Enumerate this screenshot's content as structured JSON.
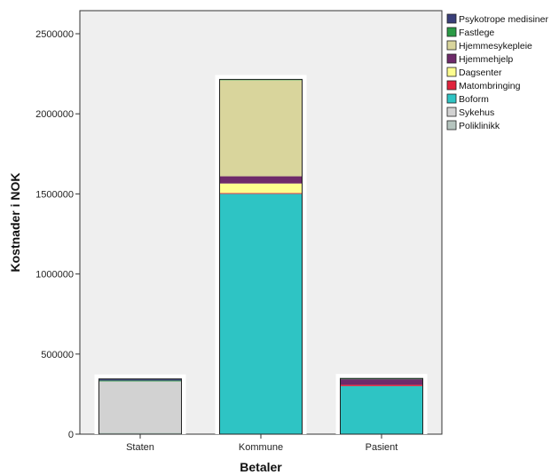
{
  "chart_data": {
    "type": "bar",
    "stacked": true,
    "xlabel": "Betaler",
    "ylabel": "Kostnader i NOK",
    "ylim": [
      0,
      2500000
    ],
    "yticks": [
      0,
      500000,
      1000000,
      1500000,
      2000000,
      2500000
    ],
    "yticklabels": [
      "0",
      "500000",
      "1000000",
      "1500000",
      "2000000",
      "2500000"
    ],
    "categories": [
      "Staten",
      "Kommune",
      "Pasient"
    ],
    "legend_position": "top-right",
    "legend_order": [
      "Psykotrope medisiner",
      "Fastlege",
      "Hjemmesykepleie",
      "Hjemmehjelp",
      "Dagsenter",
      "Matombringing",
      "Boform",
      "Sykehus",
      "Poliklinikk"
    ],
    "series": [
      {
        "name": "Poliklinikk",
        "color": "#b5c4be",
        "values": [
          10000,
          0,
          0
        ]
      },
      {
        "name": "Sykehus",
        "color": "#d2d2d2",
        "values": [
          320000,
          0,
          0
        ]
      },
      {
        "name": "Boform",
        "color": "#2ec4c4",
        "values": [
          0,
          1500000,
          300000
        ]
      },
      {
        "name": "Matombringing",
        "color": "#e0233c",
        "values": [
          0,
          5000,
          8000
        ]
      },
      {
        "name": "Dagsenter",
        "color": "#fdfd8e",
        "values": [
          0,
          60000,
          0
        ]
      },
      {
        "name": "Hjemmehjelp",
        "color": "#6e2a6a",
        "values": [
          0,
          45000,
          35000
        ]
      },
      {
        "name": "Hjemmesykepleie",
        "color": "#d9d59c",
        "values": [
          0,
          600000,
          0
        ]
      },
      {
        "name": "Fastlege",
        "color": "#2a9a45",
        "values": [
          5000,
          5000,
          5000
        ]
      },
      {
        "name": "Psykotrope medisiner",
        "color": "#3a3f7a",
        "values": [
          10000,
          0,
          0
        ]
      }
    ]
  }
}
